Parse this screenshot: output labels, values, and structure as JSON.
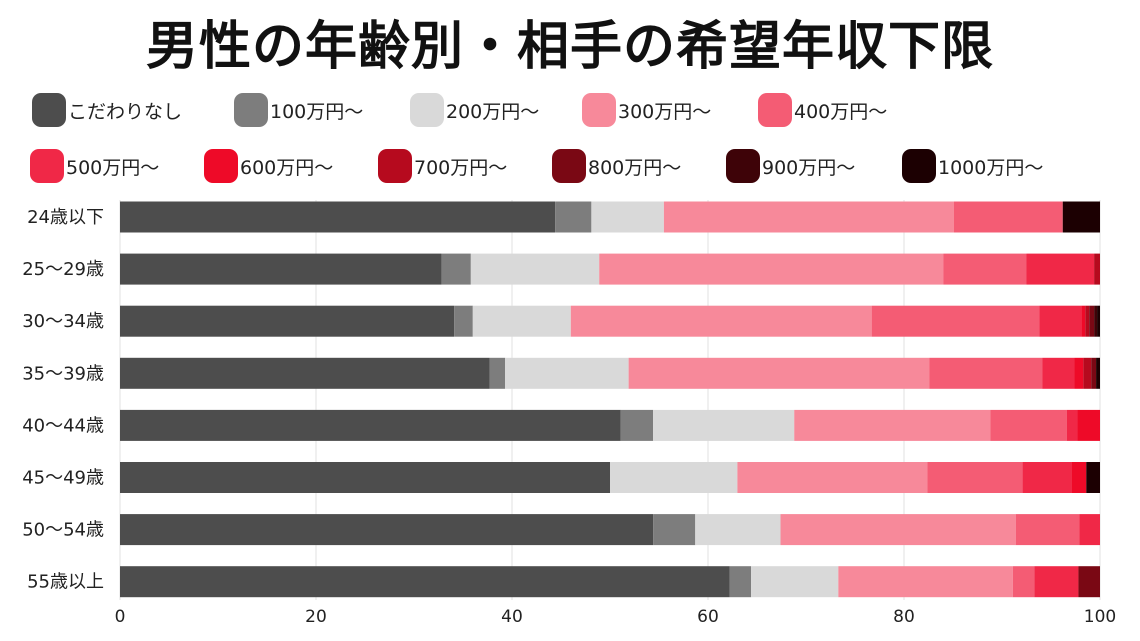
{
  "title": "男性の年齢別・相手の希望年収下限",
  "chart_data": {
    "type": "bar",
    "orientation": "horizontal",
    "stacked": true,
    "categories": [
      "24歳以下",
      "25〜29歳",
      "30〜34歳",
      "35〜39歳",
      "40〜44歳",
      "45〜49歳",
      "50〜54歳",
      "55歳以上"
    ],
    "series": [
      {
        "name": "こだわりなし",
        "color": "#4d4d4d",
        "values": [
          44.4,
          32.8,
          34.1,
          37.7,
          51.1,
          50.0,
          54.4,
          62.2
        ]
      },
      {
        "name": "100万円〜",
        "color": "#7d7d7d",
        "values": [
          3.7,
          3.0,
          1.9,
          1.6,
          3.3,
          0.0,
          4.3,
          2.2
        ]
      },
      {
        "name": "200万円〜",
        "color": "#d9d9d9",
        "values": [
          7.4,
          13.1,
          10.0,
          12.6,
          14.4,
          13.0,
          8.7,
          8.9
        ]
      },
      {
        "name": "300万円〜",
        "color": "#f7899a",
        "values": [
          29.6,
          35.1,
          30.7,
          30.7,
          20.0,
          19.4,
          24.0,
          17.8
        ]
      },
      {
        "name": "400万円〜",
        "color": "#f45c74",
        "values": [
          11.1,
          8.5,
          17.1,
          11.5,
          7.8,
          9.7,
          6.5,
          2.2
        ]
      },
      {
        "name": "500万円〜",
        "color": "#f02847",
        "values": [
          0.0,
          6.9,
          4.3,
          3.3,
          1.1,
          5.0,
          2.1,
          4.5
        ]
      },
      {
        "name": "600万円〜",
        "color": "#ee0a28",
        "values": [
          0.0,
          0.0,
          0.4,
          0.9,
          2.3,
          1.5,
          0.0,
          0.0
        ]
      },
      {
        "name": "700万円〜",
        "color": "#b60a1e",
        "values": [
          0.0,
          0.6,
          0.4,
          0.8,
          0.0,
          0.0,
          0.0,
          0.0
        ]
      },
      {
        "name": "800万円〜",
        "color": "#7a0814",
        "values": [
          0.0,
          0.0,
          0.5,
          0.5,
          0.0,
          0.0,
          0.0,
          2.2
        ]
      },
      {
        "name": "900万円〜",
        "color": "#3e0308",
        "values": [
          0.0,
          0.0,
          0.3,
          0.0,
          0.0,
          0.0,
          0.0,
          0.0
        ]
      },
      {
        "name": "1000万円〜",
        "color": "#1c0002",
        "values": [
          3.8,
          0.0,
          0.3,
          0.4,
          0.0,
          1.4,
          0.0,
          0.0
        ]
      }
    ],
    "xlim": [
      0,
      100
    ],
    "xticks": [
      0,
      20,
      40,
      60,
      80,
      100
    ],
    "grid": true,
    "legend_position": "top",
    "xlabel": "",
    "ylabel": ""
  }
}
